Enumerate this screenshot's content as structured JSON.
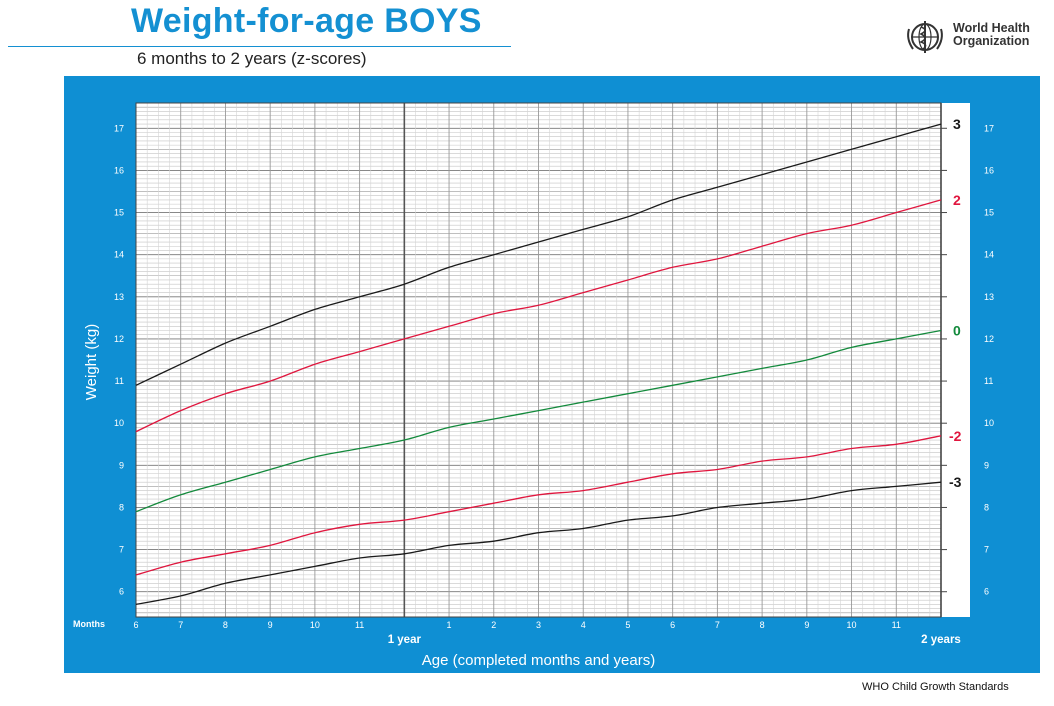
{
  "header": {
    "title": "Weight-for-age BOYS",
    "subtitle": "6 months to 2 years (z-scores)",
    "org_line1": "World Health",
    "org_line2": "Organization",
    "logo": "who-emblem-icon"
  },
  "footer": {
    "text": "WHO Child Growth Standards"
  },
  "colors": {
    "panel": "#0f8fd3",
    "title": "#1490d2",
    "black": "#1a1a1a",
    "red": "#e0163e",
    "green": "#138a3c"
  },
  "chart_data": {
    "type": "line",
    "title": "Weight-for-age BOYS",
    "subtitle": "6 months to 2 years (z-scores)",
    "xlabel": "Age (completed months and years)",
    "ylabel": "Weight (kg)",
    "x_unit_label": "Months",
    "xlim": [
      6,
      24
    ],
    "ylim": [
      5.4,
      17.6
    ],
    "x_ticks": [
      {
        "x": 6,
        "label": "6"
      },
      {
        "x": 7,
        "label": "7"
      },
      {
        "x": 8,
        "label": "8"
      },
      {
        "x": 9,
        "label": "9"
      },
      {
        "x": 10,
        "label": "10"
      },
      {
        "x": 11,
        "label": "11"
      },
      {
        "x": 13,
        "label": "1"
      },
      {
        "x": 14,
        "label": "2"
      },
      {
        "x": 15,
        "label": "3"
      },
      {
        "x": 16,
        "label": "4"
      },
      {
        "x": 17,
        "label": "5"
      },
      {
        "x": 18,
        "label": "6"
      },
      {
        "x": 19,
        "label": "7"
      },
      {
        "x": 20,
        "label": "8"
      },
      {
        "x": 21,
        "label": "9"
      },
      {
        "x": 22,
        "label": "10"
      },
      {
        "x": 23,
        "label": "11"
      }
    ],
    "year_marks": [
      {
        "x": 12,
        "label": "1 year"
      },
      {
        "x": 24,
        "label": "2 years"
      }
    ],
    "y_ticks": [
      6,
      7,
      8,
      9,
      10,
      11,
      12,
      13,
      14,
      15,
      16,
      17
    ],
    "grid": true,
    "series": [
      {
        "name": "3",
        "color": "#1a1a1a",
        "x": [
          6,
          7,
          8,
          9,
          10,
          11,
          12,
          13,
          14,
          15,
          16,
          17,
          18,
          19,
          20,
          21,
          22,
          23,
          24
        ],
        "values": [
          10.9,
          11.4,
          11.9,
          12.3,
          12.7,
          13.0,
          13.3,
          13.7,
          14.0,
          14.3,
          14.6,
          14.9,
          15.3,
          15.6,
          15.9,
          16.2,
          16.5,
          16.8,
          17.1
        ]
      },
      {
        "name": "2",
        "color": "#e0163e",
        "x": [
          6,
          7,
          8,
          9,
          10,
          11,
          12,
          13,
          14,
          15,
          16,
          17,
          18,
          19,
          20,
          21,
          22,
          23,
          24
        ],
        "values": [
          9.8,
          10.3,
          10.7,
          11.0,
          11.4,
          11.7,
          12.0,
          12.3,
          12.6,
          12.8,
          13.1,
          13.4,
          13.7,
          13.9,
          14.2,
          14.5,
          14.7,
          15.0,
          15.3
        ]
      },
      {
        "name": "0",
        "color": "#138a3c",
        "x": [
          6,
          7,
          8,
          9,
          10,
          11,
          12,
          13,
          14,
          15,
          16,
          17,
          18,
          19,
          20,
          21,
          22,
          23,
          24
        ],
        "values": [
          7.9,
          8.3,
          8.6,
          8.9,
          9.2,
          9.4,
          9.6,
          9.9,
          10.1,
          10.3,
          10.5,
          10.7,
          10.9,
          11.1,
          11.3,
          11.5,
          11.8,
          12.0,
          12.2
        ]
      },
      {
        "name": "-2",
        "color": "#e0163e",
        "x": [
          6,
          7,
          8,
          9,
          10,
          11,
          12,
          13,
          14,
          15,
          16,
          17,
          18,
          19,
          20,
          21,
          22,
          23,
          24
        ],
        "values": [
          6.4,
          6.7,
          6.9,
          7.1,
          7.4,
          7.6,
          7.7,
          7.9,
          8.1,
          8.3,
          8.4,
          8.6,
          8.8,
          8.9,
          9.1,
          9.2,
          9.4,
          9.5,
          9.7
        ]
      },
      {
        "name": "-3",
        "color": "#1a1a1a",
        "x": [
          6,
          7,
          8,
          9,
          10,
          11,
          12,
          13,
          14,
          15,
          16,
          17,
          18,
          19,
          20,
          21,
          22,
          23,
          24
        ],
        "values": [
          5.7,
          5.9,
          6.2,
          6.4,
          6.6,
          6.8,
          6.9,
          7.1,
          7.2,
          7.4,
          7.5,
          7.7,
          7.8,
          8.0,
          8.1,
          8.2,
          8.4,
          8.5,
          8.6
        ]
      }
    ]
  }
}
